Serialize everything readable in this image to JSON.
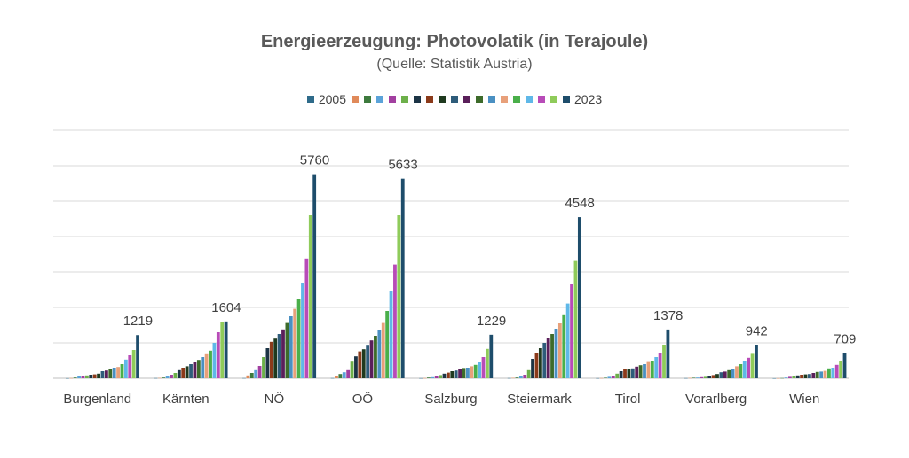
{
  "chart_data": {
    "type": "bar",
    "title": "Energieerzeugung: Photovolatik (in Terajoule)",
    "subtitle": "(Quelle: Statistik Austria)",
    "ylim": [
      0,
      7000
    ],
    "grid": true,
    "legend_position": "top",
    "categories": [
      "Burgenland",
      "Kärnten",
      "NÖ",
      "OÖ",
      "Salzburg",
      "Steiermark",
      "Tirol",
      "Vorarlberg",
      "Wien"
    ],
    "series": [
      {
        "name": "2005",
        "color": "#2E6B8A",
        "values": [
          2,
          5,
          5,
          5,
          3,
          5,
          3,
          4,
          1
        ]
      },
      {
        "name": "",
        "color": "#E08A5A",
        "values": [
          5,
          8,
          80,
          60,
          5,
          10,
          5,
          8,
          2
        ]
      },
      {
        "name": "",
        "color": "#3D7A3D",
        "values": [
          20,
          20,
          150,
          120,
          20,
          20,
          15,
          15,
          5
        ]
      },
      {
        "name": "",
        "color": "#5BA3D9",
        "values": [
          50,
          60,
          230,
          170,
          30,
          50,
          40,
          20,
          20
        ]
      },
      {
        "name": "",
        "color": "#A23FA0",
        "values": [
          60,
          100,
          350,
          230,
          60,
          100,
          70,
          30,
          40
        ]
      },
      {
        "name": "",
        "color": "#6DB04A",
        "values": [
          80,
          150,
          600,
          470,
          90,
          230,
          130,
          40,
          60
        ]
      },
      {
        "name": "",
        "color": "#1C3445",
        "values": [
          100,
          230,
          850,
          620,
          130,
          550,
          200,
          60,
          80
        ]
      },
      {
        "name": "",
        "color": "#8B3A1A",
        "values": [
          110,
          300,
          1030,
          760,
          160,
          720,
          250,
          90,
          100
        ]
      },
      {
        "name": "",
        "color": "#1F3A1F",
        "values": [
          130,
          340,
          1120,
          820,
          200,
          850,
          250,
          120,
          110
        ]
      },
      {
        "name": "",
        "color": "#2E5C7A",
        "values": [
          200,
          400,
          1250,
          920,
          220,
          1000,
          280,
          170,
          120
        ]
      },
      {
        "name": "",
        "color": "#5A1F5A",
        "values": [
          220,
          450,
          1380,
          1070,
          260,
          1140,
          330,
          190,
          150
        ]
      },
      {
        "name": "",
        "color": "#3D6B2A",
        "values": [
          270,
          520,
          1560,
          1200,
          290,
          1250,
          370,
          230,
          180
        ]
      },
      {
        "name": "",
        "color": "#4A90C2",
        "values": [
          300,
          600,
          1750,
          1350,
          300,
          1400,
          400,
          270,
          190
        ]
      },
      {
        "name": "",
        "color": "#E8A07A",
        "values": [
          320,
          680,
          1960,
          1560,
          340,
          1550,
          460,
          340,
          210
        ]
      },
      {
        "name": "",
        "color": "#4AAF4A",
        "values": [
          400,
          780,
          2240,
          1900,
          380,
          1780,
          500,
          400,
          280
        ]
      },
      {
        "name": "",
        "color": "#5FB8E8",
        "values": [
          530,
          1000,
          2700,
          2460,
          450,
          2110,
          600,
          480,
          300
        ]
      },
      {
        "name": "",
        "color": "#B84BB8",
        "values": [
          650,
          1300,
          3380,
          3210,
          600,
          2650,
          720,
          580,
          380
        ]
      },
      {
        "name": "",
        "color": "#8FCB5A",
        "values": [
          800,
          1600,
          4600,
          4600,
          830,
          3310,
          930,
          690,
          500
        ]
      },
      {
        "name": "2023",
        "color": "#1E4D6B",
        "values": [
          1219,
          1604,
          5760,
          5633,
          1229,
          4548,
          1378,
          942,
          709
        ]
      }
    ],
    "data_labels": [
      "1219",
      "1604",
      "5760",
      "5633",
      "1229",
      "4548",
      "1378",
      "942",
      "709"
    ]
  }
}
